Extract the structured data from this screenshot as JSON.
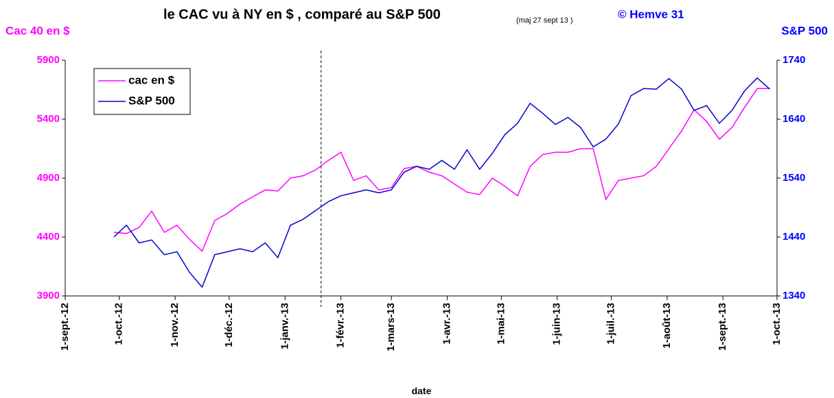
{
  "chart_data": {
    "type": "line",
    "title": "le CAC  vu à NY en $ , comparé au S&P 500",
    "subtitle": "(maj 27 sept 13 )",
    "credit": "© Hemve 31",
    "ylabel": "Cac 40 en $",
    "y2label": "S&P 500",
    "xlabel": "date",
    "xlim": [
      "2012-09-01",
      "2013-10-01"
    ],
    "xticks": [
      {
        "value": "2012-09-01",
        "label": "1-sept.-12"
      },
      {
        "value": "2012-10-01",
        "label": "1-oct.-12"
      },
      {
        "value": "2012-11-01",
        "label": "1-nov.-12"
      },
      {
        "value": "2012-12-01",
        "label": "1-déc.-12"
      },
      {
        "value": "2013-01-01",
        "label": "1-janv.-13"
      },
      {
        "value": "2013-02-01",
        "label": "1-févr.-13"
      },
      {
        "value": "2013-03-01",
        "label": "1-mars-13"
      },
      {
        "value": "2013-04-01",
        "label": "1-avr.-13"
      },
      {
        "value": "2013-05-01",
        "label": "1-mai-13"
      },
      {
        "value": "2013-06-01",
        "label": "1-juin-13"
      },
      {
        "value": "2013-07-01",
        "label": "1-juil.-13"
      },
      {
        "value": "2013-08-01",
        "label": "1-août-13"
      },
      {
        "value": "2013-09-01",
        "label": "1-sept.-13"
      },
      {
        "value": "2013-10-01",
        "label": "1-oct.-13"
      }
    ],
    "ylim": [
      3900,
      5900
    ],
    "yticks": [
      3900,
      4400,
      4900,
      5400,
      5900
    ],
    "y2lim": [
      1340,
      1740
    ],
    "y2ticks": [
      1340,
      1440,
      1540,
      1640,
      1740
    ],
    "reference_line": {
      "x": "2013-01-21",
      "style": "dashed"
    },
    "legend": "top-left",
    "x": [
      "2012-09-28",
      "2012-10-05",
      "2012-10-12",
      "2012-10-19",
      "2012-10-26",
      "2012-11-02",
      "2012-11-09",
      "2012-11-16",
      "2012-11-23",
      "2012-11-30",
      "2012-12-07",
      "2012-12-14",
      "2012-12-21",
      "2012-12-28",
      "2013-01-04",
      "2013-01-11",
      "2013-01-18",
      "2013-01-25",
      "2013-02-01",
      "2013-02-08",
      "2013-02-15",
      "2013-02-22",
      "2013-03-01",
      "2013-03-08",
      "2013-03-15",
      "2013-03-22",
      "2013-03-29",
      "2013-04-05",
      "2013-04-12",
      "2013-04-19",
      "2013-04-26",
      "2013-05-03",
      "2013-05-10",
      "2013-05-17",
      "2013-05-24",
      "2013-05-31",
      "2013-06-07",
      "2013-06-14",
      "2013-06-21",
      "2013-06-28",
      "2013-07-05",
      "2013-07-12",
      "2013-07-19",
      "2013-07-26",
      "2013-08-02",
      "2013-08-09",
      "2013-08-16",
      "2013-08-23",
      "2013-08-30",
      "2013-09-06",
      "2013-09-13",
      "2013-09-20",
      "2013-09-27"
    ],
    "series": [
      {
        "name": "cac en $",
        "color": "#ff00ff",
        "axis": "y",
        "values": [
          4440,
          4430,
          4480,
          4620,
          4440,
          4500,
          4380,
          4280,
          4540,
          4600,
          4680,
          4740,
          4800,
          4790,
          4900,
          4920,
          4970,
          5050,
          5120,
          4880,
          4920,
          4800,
          4820,
          4980,
          5000,
          4950,
          4920,
          4850,
          4780,
          4760,
          4900,
          4830,
          4750,
          5000,
          5100,
          5120,
          5120,
          5150,
          5150,
          4720,
          4880,
          4900,
          4920,
          5000,
          5150,
          5300,
          5480,
          5380,
          5230,
          5330,
          5500,
          5660,
          5660
        ]
      },
      {
        "name": "S&P 500",
        "color": "#0000cc",
        "axis": "y2",
        "values": [
          1440,
          1460,
          1430,
          1435,
          1410,
          1415,
          1380,
          1355,
          1410,
          1415,
          1420,
          1415,
          1430,
          1405,
          1460,
          1470,
          1485,
          1500,
          1510,
          1515,
          1520,
          1515,
          1520,
          1550,
          1560,
          1555,
          1570,
          1555,
          1588,
          1555,
          1582,
          1614,
          1633,
          1667,
          1650,
          1631,
          1643,
          1626,
          1593,
          1606,
          1632,
          1680,
          1692,
          1691,
          1709,
          1691,
          1655,
          1663,
          1633,
          1655,
          1688,
          1710,
          1691
        ]
      }
    ]
  }
}
